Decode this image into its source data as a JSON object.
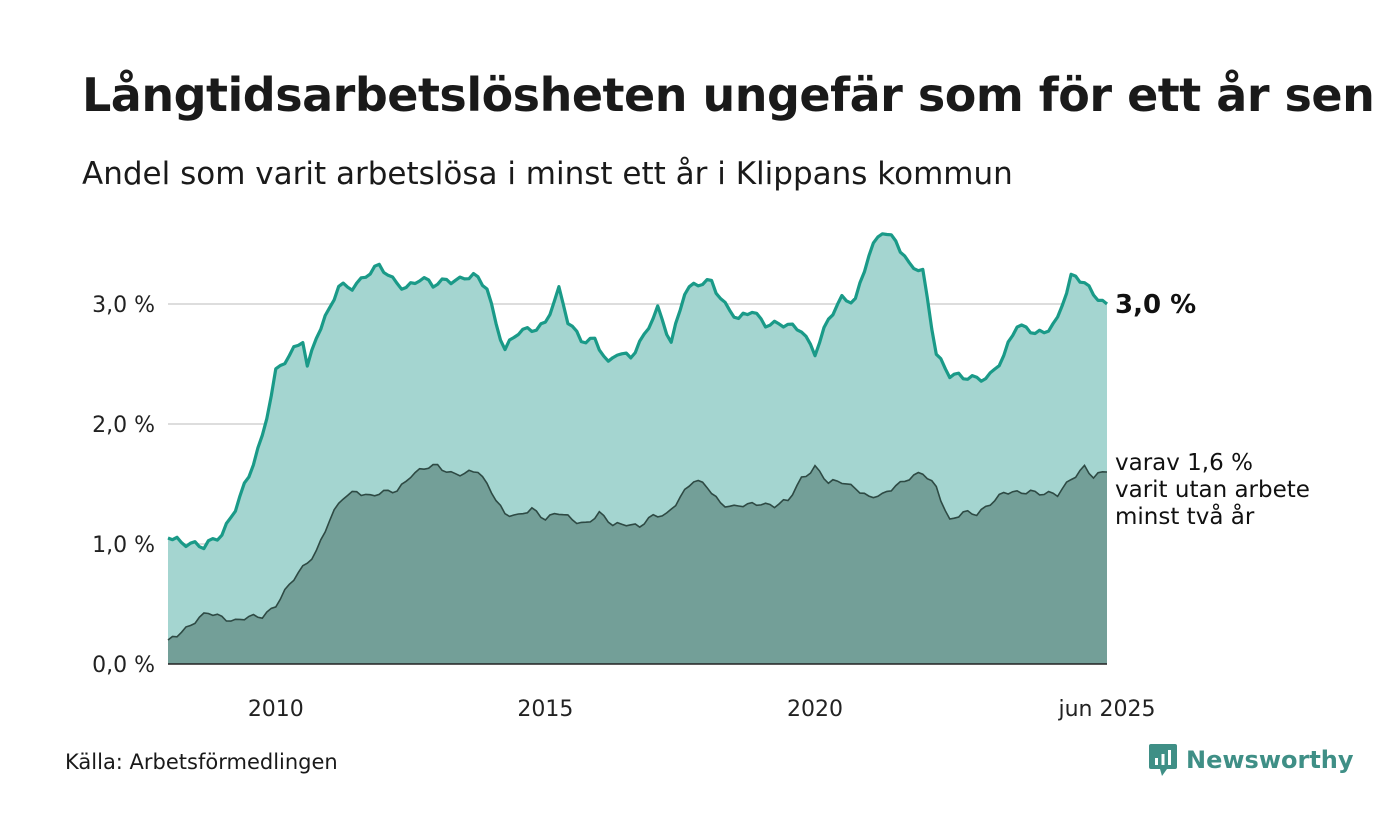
{
  "header": {
    "title": "Långtidsarbetslösheten ungefär som för ett år sen",
    "subtitle": "Andel som varit arbetslösa i minst ett år i Klippans kommun"
  },
  "footer": {
    "source": "Källa: Arbetsförmedlingen",
    "brand": "Newsworthy",
    "brand_icon": "newsworthy-chart-bubble-icon"
  },
  "colors": {
    "total_line": "#1a9a88",
    "total_area": "#a4d5d0",
    "sub_area": "#739f98",
    "sub_line": "#2e4a44",
    "grid": "#dddddd",
    "brand": "#3f8f86"
  },
  "chart_data": {
    "type": "area",
    "x_start": "2008-01",
    "x_end": "2025-06",
    "x_step": "month",
    "ylim": [
      0,
      3.7
    ],
    "yticks": [
      "0,0 %",
      "1,0 %",
      "2,0 %",
      "3,0 %"
    ],
    "ytick_values": [
      0,
      1,
      2,
      3
    ],
    "xticks": [
      "2010",
      "2015",
      "2020",
      "jun 2025"
    ],
    "xtick_dates": [
      "2010-01",
      "2015-01",
      "2020-01",
      "2025-06"
    ],
    "grid": true,
    "legend": "none",
    "end_label_total": "3,0 %",
    "end_label_sub": [
      "varav 1,6 %",
      "varit utan arbete",
      "minst två år"
    ],
    "series": [
      {
        "key": "total",
        "knots": [
          [
            "2008-01",
            1.05
          ],
          [
            "2008-03",
            1.05
          ],
          [
            "2008-06",
            1.0
          ],
          [
            "2008-09",
            0.96
          ],
          [
            "2009-01",
            1.1
          ],
          [
            "2009-04",
            1.3
          ],
          [
            "2009-07",
            1.55
          ],
          [
            "2009-10",
            1.9
          ],
          [
            "2010-01",
            2.45
          ],
          [
            "2010-04",
            2.55
          ],
          [
            "2010-07",
            2.7
          ],
          [
            "2010-08",
            2.48
          ],
          [
            "2010-10",
            2.75
          ],
          [
            "2011-01",
            2.95
          ],
          [
            "2011-03",
            3.13
          ],
          [
            "2011-06",
            3.15
          ],
          [
            "2011-09",
            3.25
          ],
          [
            "2011-12",
            3.3
          ],
          [
            "2012-03",
            3.2
          ],
          [
            "2012-06",
            3.15
          ],
          [
            "2012-09",
            3.2
          ],
          [
            "2012-12",
            3.15
          ],
          [
            "2013-03",
            3.22
          ],
          [
            "2013-06",
            3.2
          ],
          [
            "2013-09",
            3.22
          ],
          [
            "2013-12",
            3.15
          ],
          [
            "2014-02",
            2.85
          ],
          [
            "2014-04",
            2.62
          ],
          [
            "2014-07",
            2.75
          ],
          [
            "2014-10",
            2.8
          ],
          [
            "2015-01",
            2.85
          ],
          [
            "2015-04",
            3.1
          ],
          [
            "2015-06",
            2.85
          ],
          [
            "2015-09",
            2.72
          ],
          [
            "2015-12",
            2.7
          ],
          [
            "2016-03",
            2.48
          ],
          [
            "2016-05",
            2.6
          ],
          [
            "2016-08",
            2.58
          ],
          [
            "2016-11",
            2.72
          ],
          [
            "2017-02",
            2.95
          ],
          [
            "2017-05",
            2.7
          ],
          [
            "2017-08",
            3.1
          ],
          [
            "2017-11",
            3.15
          ],
          [
            "2018-02",
            3.2
          ],
          [
            "2018-05",
            3.0
          ],
          [
            "2018-08",
            2.85
          ],
          [
            "2018-11",
            2.95
          ],
          [
            "2019-02",
            2.85
          ],
          [
            "2019-05",
            2.82
          ],
          [
            "2019-08",
            2.8
          ],
          [
            "2019-10",
            2.8
          ],
          [
            "2020-01",
            2.6
          ],
          [
            "2020-04",
            2.85
          ],
          [
            "2020-07",
            3.05
          ],
          [
            "2020-10",
            3.05
          ],
          [
            "2021-01",
            3.4
          ],
          [
            "2021-04",
            3.6
          ],
          [
            "2021-07",
            3.55
          ],
          [
            "2021-10",
            3.32
          ],
          [
            "2022-01",
            3.25
          ],
          [
            "2022-04",
            2.6
          ],
          [
            "2022-07",
            2.42
          ],
          [
            "2022-10",
            2.37
          ],
          [
            "2023-01",
            2.38
          ],
          [
            "2023-04",
            2.42
          ],
          [
            "2023-07",
            2.55
          ],
          [
            "2023-10",
            2.82
          ],
          [
            "2024-01",
            2.8
          ],
          [
            "2024-04",
            2.75
          ],
          [
            "2024-07",
            2.85
          ],
          [
            "2024-10",
            3.25
          ],
          [
            "2025-01",
            3.2
          ],
          [
            "2025-03",
            3.05
          ],
          [
            "2025-06",
            3.0
          ]
        ]
      },
      {
        "key": "sub",
        "knots": [
          [
            "2008-01",
            0.2
          ],
          [
            "2008-04",
            0.28
          ],
          [
            "2008-07",
            0.35
          ],
          [
            "2008-10",
            0.42
          ],
          [
            "2009-01",
            0.4
          ],
          [
            "2009-04",
            0.36
          ],
          [
            "2009-07",
            0.38
          ],
          [
            "2009-10",
            0.4
          ],
          [
            "2010-01",
            0.5
          ],
          [
            "2010-04",
            0.65
          ],
          [
            "2010-07",
            0.8
          ],
          [
            "2010-10",
            0.95
          ],
          [
            "2011-01",
            1.2
          ],
          [
            "2011-04",
            1.38
          ],
          [
            "2011-07",
            1.45
          ],
          [
            "2011-10",
            1.4
          ],
          [
            "2012-01",
            1.42
          ],
          [
            "2012-04",
            1.45
          ],
          [
            "2012-07",
            1.58
          ],
          [
            "2012-10",
            1.62
          ],
          [
            "2013-01",
            1.65
          ],
          [
            "2013-04",
            1.6
          ],
          [
            "2013-07",
            1.58
          ],
          [
            "2013-10",
            1.6
          ],
          [
            "2014-01",
            1.45
          ],
          [
            "2014-04",
            1.25
          ],
          [
            "2014-07",
            1.22
          ],
          [
            "2014-10",
            1.3
          ],
          [
            "2015-01",
            1.22
          ],
          [
            "2015-04",
            1.25
          ],
          [
            "2015-07",
            1.2
          ],
          [
            "2015-10",
            1.18
          ],
          [
            "2016-01",
            1.25
          ],
          [
            "2016-04",
            1.15
          ],
          [
            "2016-07",
            1.18
          ],
          [
            "2016-10",
            1.15
          ],
          [
            "2017-01",
            1.22
          ],
          [
            "2017-04",
            1.25
          ],
          [
            "2017-07",
            1.4
          ],
          [
            "2017-10",
            1.52
          ],
          [
            "2018-01",
            1.48
          ],
          [
            "2018-04",
            1.35
          ],
          [
            "2018-07",
            1.3
          ],
          [
            "2018-10",
            1.32
          ],
          [
            "2019-01",
            1.35
          ],
          [
            "2019-04",
            1.32
          ],
          [
            "2019-07",
            1.35
          ],
          [
            "2019-10",
            1.55
          ],
          [
            "2020-01",
            1.65
          ],
          [
            "2020-04",
            1.5
          ],
          [
            "2020-07",
            1.52
          ],
          [
            "2020-10",
            1.48
          ],
          [
            "2021-01",
            1.38
          ],
          [
            "2021-04",
            1.4
          ],
          [
            "2021-07",
            1.5
          ],
          [
            "2021-10",
            1.55
          ],
          [
            "2022-01",
            1.58
          ],
          [
            "2022-04",
            1.48
          ],
          [
            "2022-07",
            1.2
          ],
          [
            "2022-10",
            1.25
          ],
          [
            "2023-01",
            1.25
          ],
          [
            "2023-04",
            1.35
          ],
          [
            "2023-07",
            1.42
          ],
          [
            "2023-10",
            1.42
          ],
          [
            "2024-01",
            1.45
          ],
          [
            "2024-04",
            1.42
          ],
          [
            "2024-07",
            1.4
          ],
          [
            "2024-10",
            1.55
          ],
          [
            "2025-01",
            1.65
          ],
          [
            "2025-03",
            1.55
          ],
          [
            "2025-06",
            1.6
          ]
        ]
      }
    ]
  }
}
